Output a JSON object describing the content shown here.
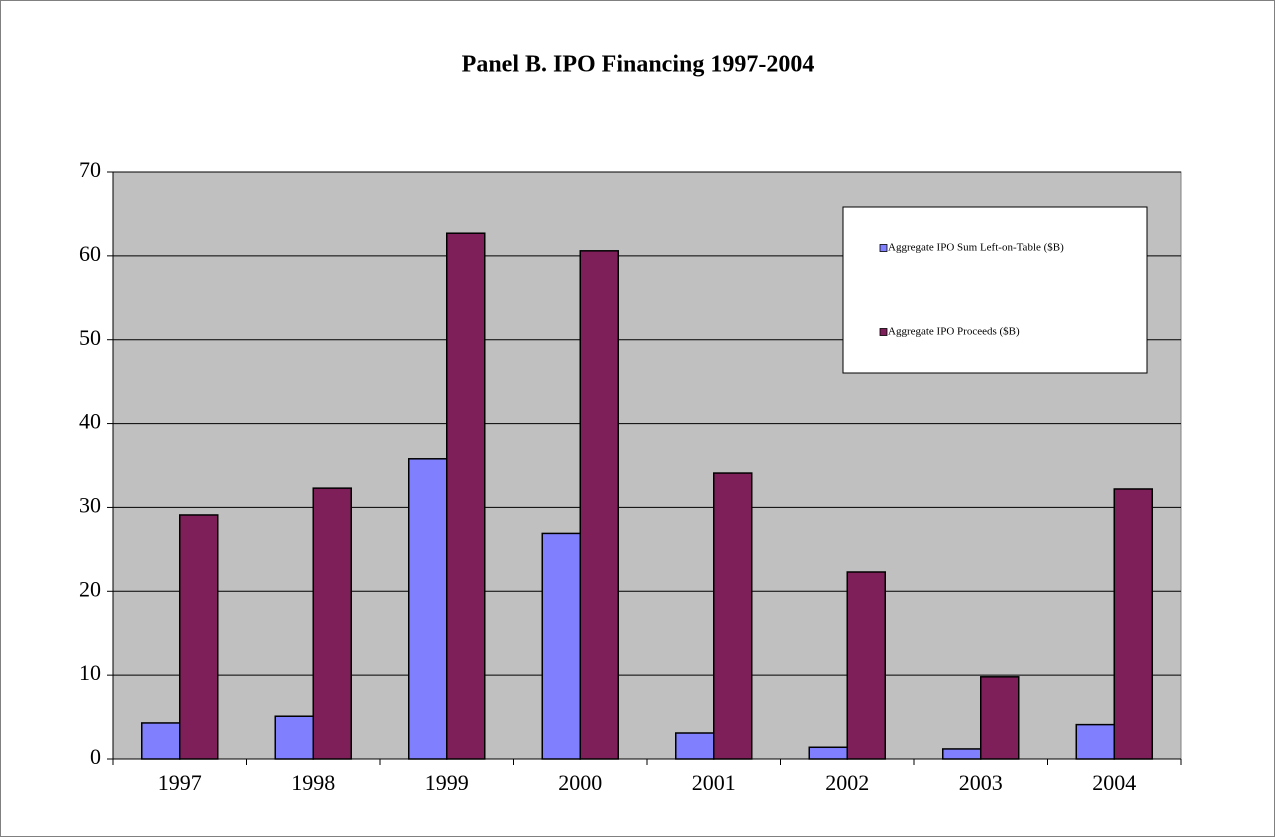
{
  "chart_data": {
    "type": "bar",
    "title": "Panel B. IPO Financing 1997-2004",
    "categories": [
      "1997",
      "1998",
      "1999",
      "2000",
      "2001",
      "2002",
      "2003",
      "2004"
    ],
    "series": [
      {
        "name": "Aggregate IPO Sum Left-on-Table ($B)",
        "color": "#8080ff",
        "values": [
          4.3,
          5.1,
          35.8,
          26.9,
          3.1,
          1.4,
          1.2,
          4.1
        ]
      },
      {
        "name": "Aggregate IPO Proceeds ($B)",
        "color": "#7f1f5a",
        "values": [
          29.1,
          32.3,
          62.7,
          60.6,
          34.1,
          22.3,
          9.8,
          32.2
        ]
      }
    ],
    "ylim": [
      0,
      70
    ],
    "yticks": [
      0,
      10,
      20,
      30,
      40,
      50,
      60,
      70
    ],
    "grid": true
  }
}
